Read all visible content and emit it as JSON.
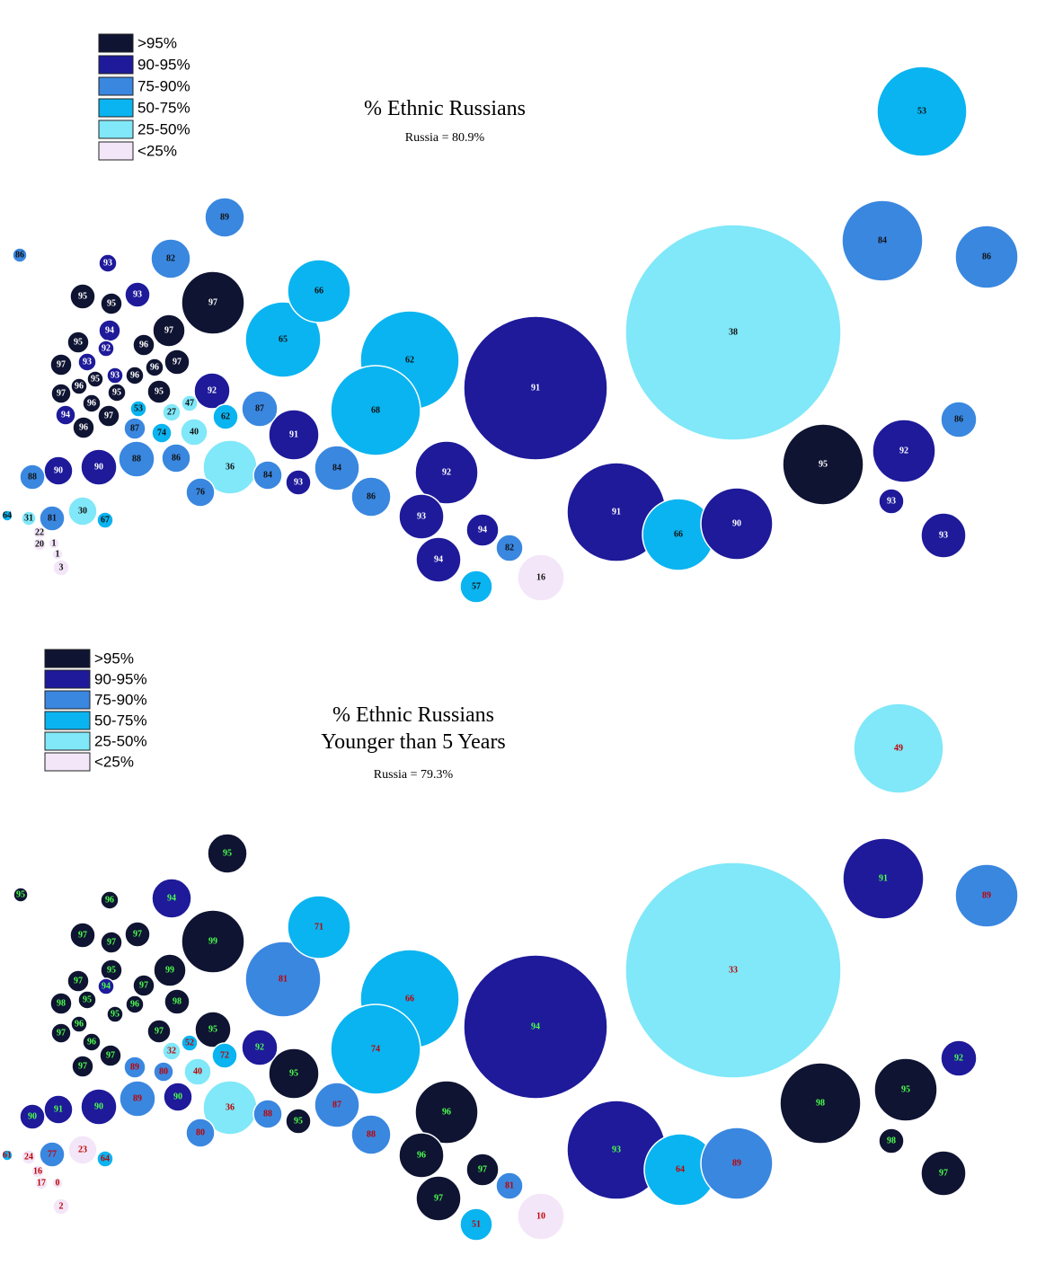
{
  "maps": [
    {
      "title_lines": [
        "% Ethnic Russians"
      ],
      "subtitle": "Russia = 80.9%",
      "legend": [
        {
          "label": ">95%",
          "color": "#0f1432"
        },
        {
          "label": "90-95%",
          "color": "#1e1a9a"
        },
        {
          "label": "75-90%",
          "color": "#3a87e0"
        },
        {
          "label": "50-75%",
          "color": "#0ab4f0"
        },
        {
          "label": "25-50%",
          "color": "#80e8f8"
        },
        {
          "label": "<25%",
          "color": "#f3e6f8"
        }
      ],
      "regions": {
        "values": [
          86,
          93,
          82,
          89,
          95,
          93,
          95,
          97,
          94,
          97,
          95,
          92,
          96,
          97,
          93,
          96,
          96,
          97,
          93,
          95,
          96,
          97,
          95,
          95,
          92,
          96,
          94,
          97,
          96,
          47,
          53,
          27,
          62,
          87,
          74,
          40,
          87,
          91,
          66,
          65,
          62,
          68,
          88,
          86,
          36,
          84,
          93,
          84,
          86,
          88,
          90,
          90,
          76,
          30,
          67,
          81,
          64,
          31,
          22,
          20,
          1,
          1,
          3,
          92,
          93,
          94,
          94,
          82,
          57,
          16,
          91,
          91,
          66,
          90,
          38,
          53,
          84,
          86,
          86,
          95,
          92,
          93,
          93
        ],
        "colors": [
          "#3a87e0",
          "#1e1a9a",
          "#3a87e0",
          "#3a87e0",
          "#0f1432",
          "#1e1a9a",
          "#0f1432",
          "#0f1432",
          "#1e1a9a",
          "#0f1432",
          "#0f1432",
          "#1e1a9a",
          "#0f1432",
          "#0f1432",
          "#1e1a9a",
          "#0f1432",
          "#0f1432",
          "#0f1432",
          "#1e1a9a",
          "#0f1432",
          "#0f1432",
          "#0f1432",
          "#0f1432",
          "#0f1432",
          "#1e1a9a",
          "#0f1432",
          "#1e1a9a",
          "#0f1432",
          "#0f1432",
          "#80e8f8",
          "#0ab4f0",
          "#80e8f8",
          "#0ab4f0",
          "#3a87e0",
          "#0ab4f0",
          "#80e8f8",
          "#3a87e0",
          "#1e1a9a",
          "#0ab4f0",
          "#0ab4f0",
          "#0ab4f0",
          "#0ab4f0",
          "#3a87e0",
          "#3a87e0",
          "#80e8f8",
          "#3a87e0",
          "#1e1a9a",
          "#3a87e0",
          "#3a87e0",
          "#3a87e0",
          "#1e1a9a",
          "#1e1a9a",
          "#3a87e0",
          "#80e8f8",
          "#0ab4f0",
          "#3a87e0",
          "#0ab4f0",
          "#80e8f8",
          "#f3e6f8",
          "#f3e6f8",
          "#f3e6f8",
          "#f3e6f8",
          "#f3e6f8",
          "#1e1a9a",
          "#1e1a9a",
          "#1e1a9a",
          "#1e1a9a",
          "#3a87e0",
          "#0ab4f0",
          "#f3e6f8",
          "#1e1a9a",
          "#1e1a9a",
          "#0ab4f0",
          "#1e1a9a",
          "#80e8f8",
          "#0ab4f0",
          "#3a87e0",
          "#3a87e0",
          "#3a87e0",
          "#0f1432",
          "#1e1a9a",
          "#1e1a9a",
          "#1e1a9a"
        ]
      }
    },
    {
      "title_lines": [
        "% Ethnic Russians",
        "Younger than 5 Years"
      ],
      "subtitle": "Russia = 79.3%",
      "legend": [
        {
          "label": ">95%",
          "color": "#0f1432"
        },
        {
          "label": "90-95%",
          "color": "#1e1a9a"
        },
        {
          "label": "75-90%",
          "color": "#3a87e0"
        },
        {
          "label": "50-75%",
          "color": "#0ab4f0"
        },
        {
          "label": "25-50%",
          "color": "#80e8f8"
        },
        {
          "label": "<25%",
          "color": "#f3e6f8"
        }
      ],
      "regions": {
        "values": [
          95,
          96,
          94,
          95,
          97,
          97,
          97,
          99,
          71,
          95,
          99,
          97,
          94,
          95,
          97,
          98,
          96,
          98,
          95,
          96,
          97,
          95,
          81,
          66,
          97,
          96,
          97,
          97,
          32,
          52,
          72,
          92,
          95,
          89,
          80,
          40,
          74,
          89,
          90,
          36,
          88,
          95,
          87,
          88,
          90,
          91,
          90,
          80,
          23,
          64,
          77,
          61,
          24,
          16,
          17,
          0,
          2,
          96,
          96,
          97,
          97,
          81,
          51,
          10,
          94,
          93,
          64,
          89,
          33,
          49,
          91,
          89,
          92,
          98,
          95,
          98,
          97
        ],
        "colors": [
          "#0f1432",
          "#0f1432",
          "#1e1a9a",
          "#0f1432",
          "#0f1432",
          "#0f1432",
          "#0f1432",
          "#0f1432",
          "#0ab4f0",
          "#0f1432",
          "#0f1432",
          "#0f1432",
          "#1e1a9a",
          "#0f1432",
          "#0f1432",
          "#0f1432",
          "#0f1432",
          "#0f1432",
          "#0f1432",
          "#0f1432",
          "#0f1432",
          "#0f1432",
          "#3a87e0",
          "#0ab4f0",
          "#0f1432",
          "#0f1432",
          "#0f1432",
          "#0f1432",
          "#80e8f8",
          "#0ab4f0",
          "#0ab4f0",
          "#1e1a9a",
          "#0f1432",
          "#3a87e0",
          "#3a87e0",
          "#80e8f8",
          "#0ab4f0",
          "#3a87e0",
          "#1e1a9a",
          "#80e8f8",
          "#3a87e0",
          "#0f1432",
          "#3a87e0",
          "#3a87e0",
          "#1e1a9a",
          "#1e1a9a",
          "#1e1a9a",
          "#3a87e0",
          "#f3e6f8",
          "#0ab4f0",
          "#3a87e0",
          "#0ab4f0",
          "#f3e6f8",
          "#f3e6f8",
          "#f3e6f8",
          "#f3e6f8",
          "#f3e6f8",
          "#0f1432",
          "#0f1432",
          "#0f1432",
          "#0f1432",
          "#3a87e0",
          "#0ab4f0",
          "#f3e6f8",
          "#1e1a9a",
          "#1e1a9a",
          "#0ab4f0",
          "#3a87e0",
          "#80e8f8",
          "#80e8f8",
          "#1e1a9a",
          "#3a87e0",
          "#1e1a9a",
          "#0f1432",
          "#0f1432",
          "#0f1432",
          "#0f1432"
        ]
      }
    }
  ]
}
